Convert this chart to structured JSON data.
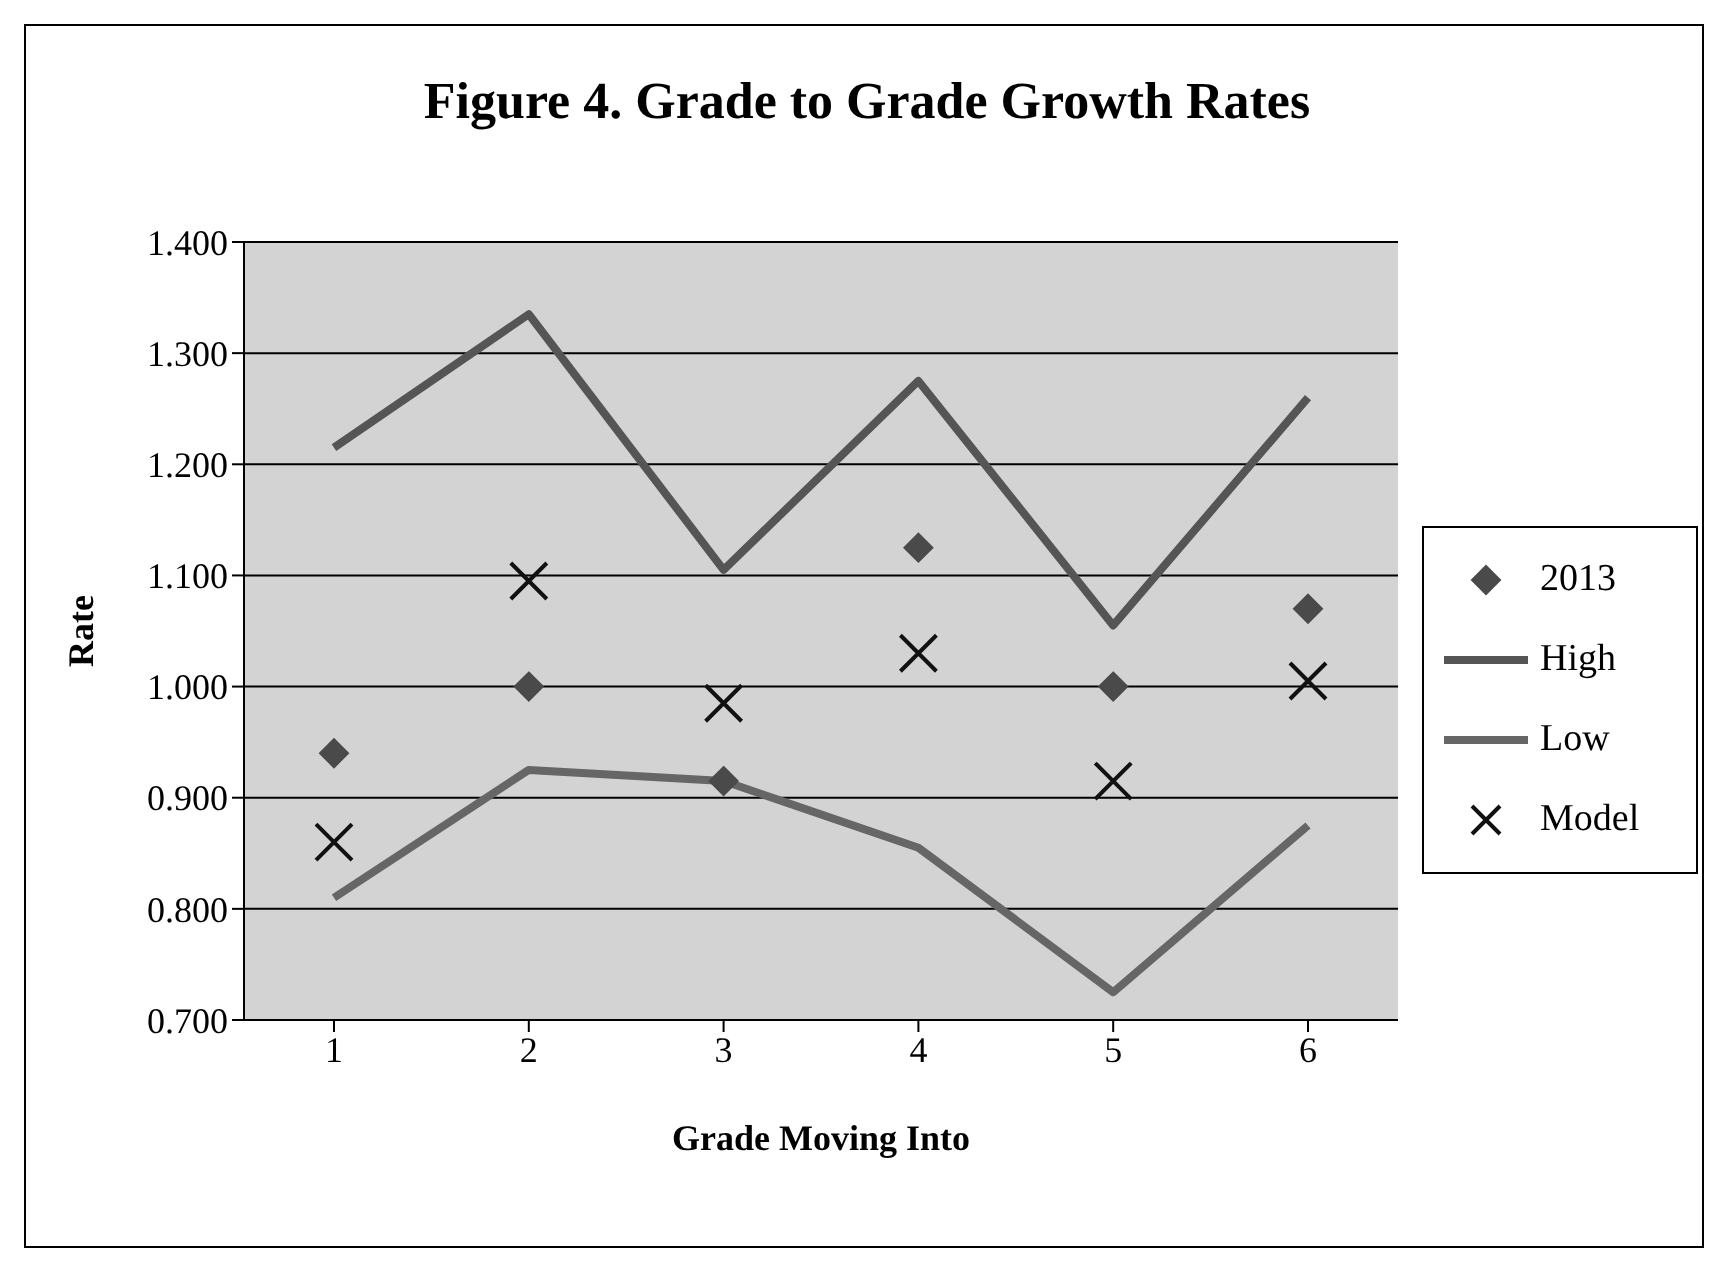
{
  "chart_data": {
    "type": "line",
    "title": "Figure 4. Grade to Grade Growth Rates",
    "xlabel": "Grade Moving Into",
    "ylabel": "Rate",
    "categories": [
      "1",
      "2",
      "3",
      "4",
      "5",
      "6"
    ],
    "series": [
      {
        "name": "2013",
        "type": "scatter",
        "marker": "diamond",
        "color": "#4a4a4a",
        "values": [
          0.94,
          1.0,
          0.915,
          1.125,
          1.0,
          1.07
        ]
      },
      {
        "name": "High",
        "marker": "none",
        "color": "#555555",
        "values": [
          1.215,
          1.335,
          1.105,
          1.275,
          1.055,
          1.26
        ]
      },
      {
        "name": "Low",
        "marker": "none",
        "color": "#666666",
        "values": [
          0.81,
          0.925,
          0.915,
          0.855,
          0.725,
          0.875
        ]
      },
      {
        "name": "Model",
        "type": "scatter",
        "marker": "cross",
        "color": "#111111",
        "values": [
          0.86,
          1.095,
          0.985,
          1.03,
          0.915,
          1.005
        ]
      }
    ],
    "ylim": [
      0.7,
      1.4
    ],
    "yticks": [
      {
        "value": 0.7,
        "label": "0.700"
      },
      {
        "value": 0.8,
        "label": "0.800"
      },
      {
        "value": 0.9,
        "label": "0.900"
      },
      {
        "value": 1.0,
        "label": "1.000"
      },
      {
        "value": 1.1,
        "label": "1.100"
      },
      {
        "value": 1.2,
        "label": "1.200"
      },
      {
        "value": 1.3,
        "label": "1.300"
      },
      {
        "value": 1.4,
        "label": "1.400"
      }
    ],
    "grid": "y",
    "legend": "right"
  }
}
